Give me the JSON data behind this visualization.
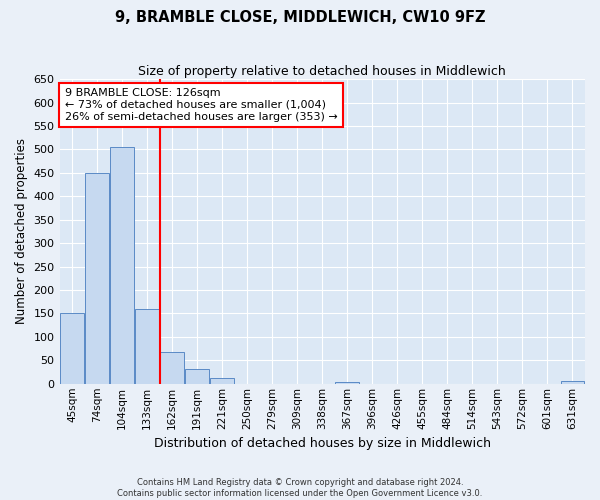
{
  "title": "9, BRAMBLE CLOSE, MIDDLEWICH, CW10 9FZ",
  "subtitle": "Size of property relative to detached houses in Middlewich",
  "xlabel": "Distribution of detached houses by size in Middlewich",
  "ylabel": "Number of detached properties",
  "footer_line1": "Contains HM Land Registry data © Crown copyright and database right 2024.",
  "footer_line2": "Contains public sector information licensed under the Open Government Licence v3.0.",
  "bar_labels": [
    "45sqm",
    "74sqm",
    "104sqm",
    "133sqm",
    "162sqm",
    "191sqm",
    "221sqm",
    "250sqm",
    "279sqm",
    "309sqm",
    "338sqm",
    "367sqm",
    "396sqm",
    "426sqm",
    "455sqm",
    "484sqm",
    "514sqm",
    "543sqm",
    "572sqm",
    "601sqm",
    "631sqm"
  ],
  "bar_values": [
    150,
    450,
    505,
    160,
    67,
    32,
    12,
    0,
    0,
    0,
    0,
    3,
    0,
    0,
    0,
    0,
    0,
    0,
    0,
    0,
    5
  ],
  "bar_color": "#c6d9f0",
  "bar_edge_color": "#5a8ac6",
  "vline_x": 3.5,
  "vline_color": "red",
  "annotation_title": "9 BRAMBLE CLOSE: 126sqm",
  "annotation_line2": "← 73% of detached houses are smaller (1,004)",
  "annotation_line3": "26% of semi-detached houses are larger (353) →",
  "annotation_box_color": "red",
  "ylim": [
    0,
    650
  ],
  "yticks": [
    0,
    50,
    100,
    150,
    200,
    250,
    300,
    350,
    400,
    450,
    500,
    550,
    600,
    650
  ],
  "background_color": "#eaf0f8",
  "plot_bg_color": "#dce8f5",
  "grid_color": "#c5d8ee"
}
